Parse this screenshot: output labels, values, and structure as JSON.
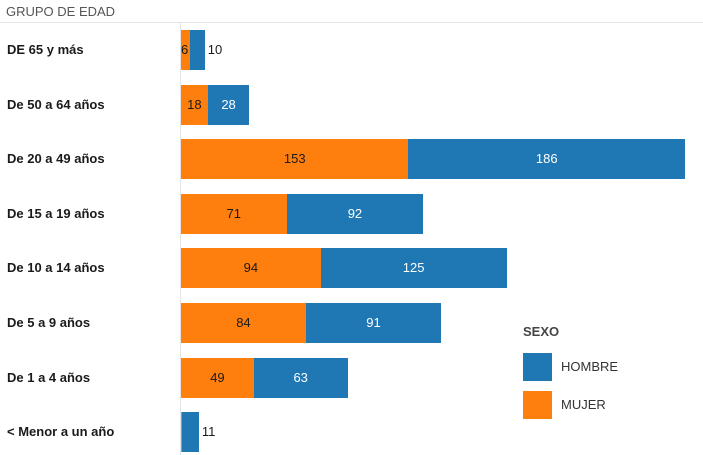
{
  "chart_data": {
    "type": "bar",
    "orientation": "horizontal",
    "stacked": true,
    "category_header": "GRUPO DE EDAD",
    "categories": [
      "DE 65 y más",
      "De 50 a 64 años",
      "De 20 a 49 años",
      "De 15 a 19 años",
      "De 10 a 14 años",
      "De 5 a 9 años",
      "De 1 a 4 años",
      "< Menor a un año"
    ],
    "series": [
      {
        "name": "MUJER",
        "color": "#ff7f0e",
        "values": [
          6,
          18,
          153,
          71,
          94,
          84,
          49,
          1
        ]
      },
      {
        "name": "HOMBRE",
        "color": "#1f77b4",
        "values": [
          10,
          28,
          186,
          92,
          125,
          91,
          63,
          11
        ]
      }
    ],
    "legend": {
      "title": "SEXO",
      "placement": "bottom-right",
      "entries": [
        {
          "label": "HOMBRE",
          "color": "#1f77b4"
        },
        {
          "label": "MUJER",
          "color": "#ff7f0e"
        }
      ]
    },
    "grid": false
  }
}
